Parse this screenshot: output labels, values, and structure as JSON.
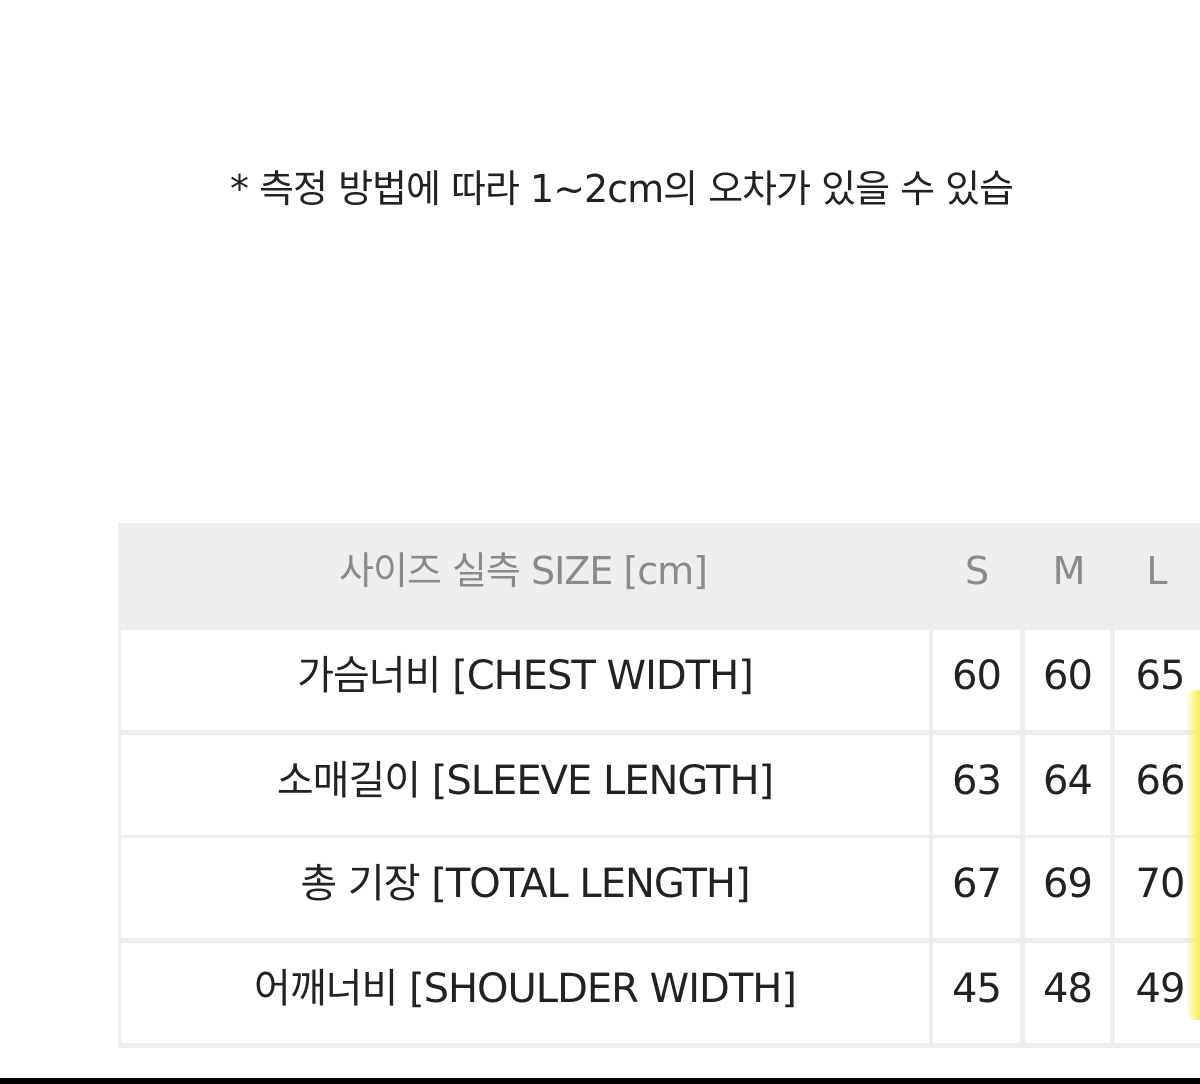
{
  "note": "* 측정 방법에 따라 1~2cm의 오차가 있을 수 있습",
  "table": {
    "header": "사이즈 실측 SIZE [cm]",
    "sizes": [
      "S",
      "M",
      "L"
    ],
    "rows": [
      {
        "label": "가슴너비 [CHEST WIDTH]",
        "values": [
          "60",
          "60",
          "65"
        ]
      },
      {
        "label": "소매길이 [SLEEVE LENGTH]",
        "values": [
          "63",
          "64",
          "66"
        ]
      },
      {
        "label": "총 기장 [TOTAL LENGTH]",
        "values": [
          "67",
          "69",
          "70"
        ]
      },
      {
        "label": "어깨너비 [SHOULDER WIDTH]",
        "values": [
          "45",
          "48",
          "49"
        ]
      }
    ]
  }
}
